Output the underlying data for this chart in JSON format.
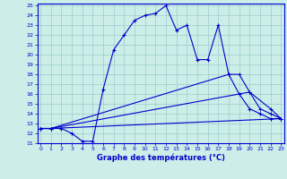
{
  "title": "Graphe des températures (°C)",
  "bg_color": "#cceee8",
  "line_color": "#0000cc",
  "grid_color": "#99cccc",
  "xmin": 0,
  "xmax": 23,
  "ymin": 11,
  "ymax": 25,
  "line1_x": [
    0,
    1,
    2,
    3,
    4,
    5,
    6,
    7,
    8,
    9,
    10,
    11,
    12,
    13,
    14,
    15,
    16,
    17,
    18,
    19,
    20,
    21,
    22,
    23
  ],
  "line1_y": [
    12.5,
    12.5,
    12.5,
    12.0,
    11.2,
    11.2,
    16.5,
    20.5,
    22.0,
    23.5,
    24.0,
    24.2,
    25.0,
    22.5,
    23.0,
    19.5,
    19.5,
    23.0,
    18.0,
    16.0,
    14.5,
    14.0,
    13.5,
    13.5
  ],
  "line2_x": [
    0,
    1,
    23
  ],
  "line2_y": [
    12.5,
    12.5,
    13.5
  ],
  "line3_x": [
    0,
    1,
    20,
    22,
    23
  ],
  "line3_y": [
    12.5,
    12.5,
    16.2,
    14.5,
    13.5
  ],
  "line4_x": [
    0,
    1,
    18,
    19,
    20,
    21,
    22,
    23
  ],
  "line4_y": [
    12.5,
    12.5,
    18.0,
    18.0,
    16.2,
    14.5,
    14.0,
    13.5
  ]
}
